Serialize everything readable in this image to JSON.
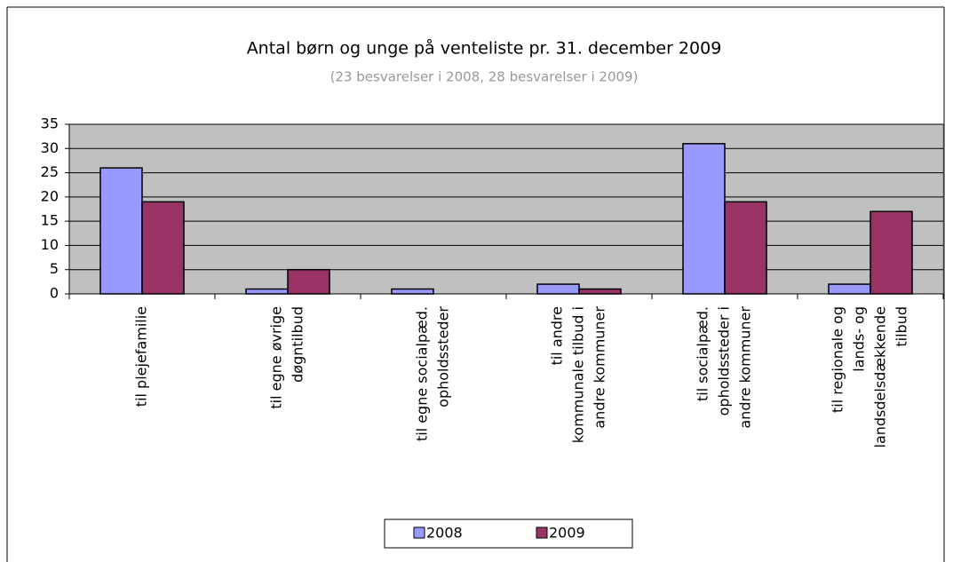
{
  "chart_data": {
    "type": "bar",
    "title": "Antal børn og unge på venteliste pr. 31. december 2009",
    "subtitle": "(23 besvarelser i 2008, 28 besvarelser i 2009)",
    "categories": [
      [
        "til plejefamilie"
      ],
      [
        "til egne øvrige",
        "døgntilbud"
      ],
      [
        "til egne socialpæd.",
        "opholdssteder"
      ],
      [
        "til andre",
        "kommunale tilbud i",
        "andre kommuner"
      ],
      [
        "til socialpæd.",
        "opholdssteder i",
        "andre kommuner"
      ],
      [
        "til regionale og",
        "lands- og",
        "landsdelsdækkende",
        "tilbud"
      ]
    ],
    "series": [
      {
        "name": "2008",
        "color": "#9999ff",
        "values": [
          26,
          1,
          1,
          2,
          31,
          2
        ]
      },
      {
        "name": "2009",
        "color": "#993366",
        "values": [
          19,
          5,
          0,
          1,
          19,
          17
        ]
      }
    ],
    "ylim": [
      0,
      35
    ],
    "yticks": [
      0,
      5,
      10,
      15,
      20,
      25,
      30,
      35
    ],
    "grid": true,
    "plot_background": "#c0c0c0",
    "legend": "bottom"
  }
}
